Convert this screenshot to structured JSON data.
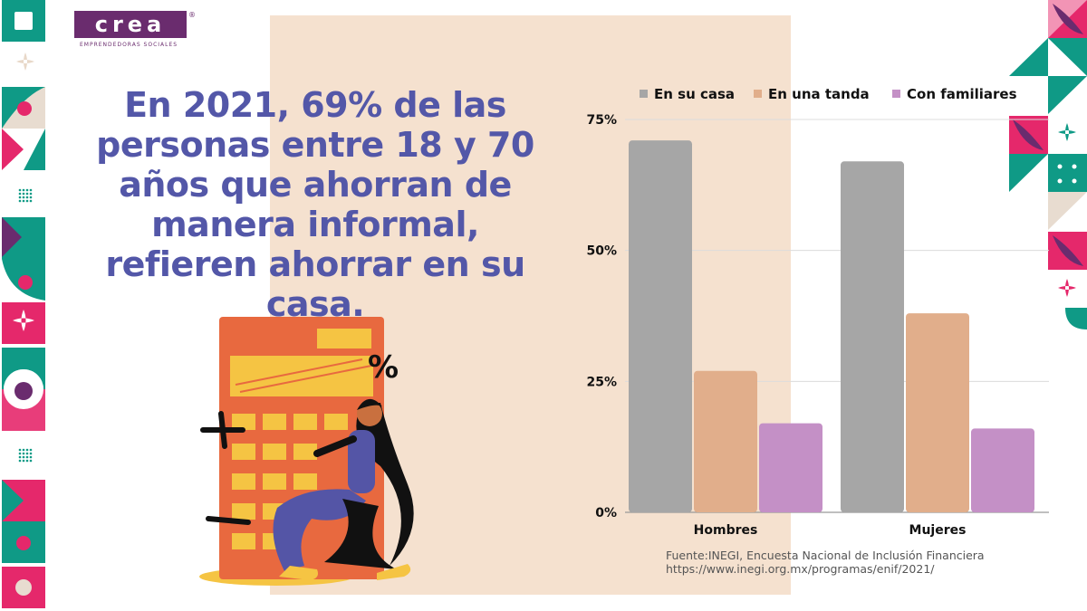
{
  "brand": {
    "logo_text": "crea",
    "registered": "®",
    "tagline": "EMPRENDEDORAS SOCIALES"
  },
  "headline": "En 2021, 69% de las personas entre 18 y 70 años que ahorran de manera informal, refieren ahorrar en su casa.",
  "source": {
    "line1": "Fuente:INEGI, Encuesta Nacional de Inclusión Financiera",
    "line2": "https://www.inegi.org.mx/programas/enif/2021/"
  },
  "illustration": {
    "percent_symbol": "%"
  },
  "colors": {
    "headline": "#5357a8",
    "panel": "#f5e1cf",
    "teal": "#0f9a86",
    "pink": "#e5286b",
    "plum": "#6a2c6e"
  },
  "chart_data": {
    "type": "bar",
    "categories": [
      "Hombres",
      "Mujeres"
    ],
    "series": [
      {
        "name": "En su casa",
        "values": [
          71,
          67
        ],
        "color": "#a6a6a6"
      },
      {
        "name": "En una tanda",
        "values": [
          27,
          38
        ],
        "color": "#e1ae8b"
      },
      {
        "name": "Con familiares",
        "values": [
          17,
          16
        ],
        "color": "#c490c6"
      }
    ],
    "yticks": [
      "0%",
      "25%",
      "50%",
      "75%"
    ],
    "ylim": [
      0,
      75
    ],
    "legend_position": "top",
    "grid": true
  }
}
